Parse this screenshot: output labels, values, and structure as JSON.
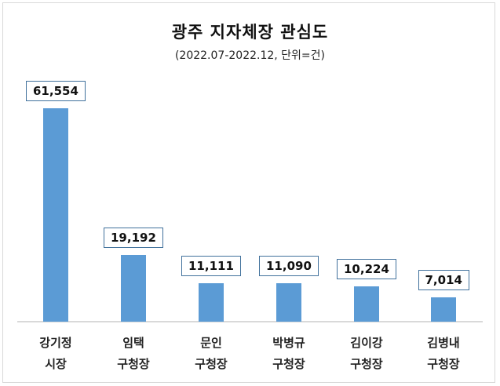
{
  "chart_data": {
    "type": "bar",
    "title": "광주 지자체장 관심도",
    "subtitle": "(2022.07-2022.12, 단위=건)",
    "categories": [
      "강기정 시장",
      "임택 구청장",
      "문인 구청장",
      "박병규 구청장",
      "김이강 구청장",
      "김병내 구청장"
    ],
    "category_lines": [
      [
        "강기정",
        "시장"
      ],
      [
        "임택",
        "구청장"
      ],
      [
        "문인",
        "구청장"
      ],
      [
        "박병규",
        "구청장"
      ],
      [
        "김이강",
        "구청장"
      ],
      [
        "김병내",
        "구청장"
      ]
    ],
    "values": [
      61554,
      19192,
      11111,
      11090,
      10224,
      7014
    ],
    "data_labels": [
      "61,554",
      "19,192",
      "11,111",
      "11,090",
      "10,224",
      "7,014"
    ],
    "xlabel": "",
    "ylabel": "",
    "grid": false,
    "legend": "none",
    "bar_color": "#5b9bd5",
    "label_border_color": "#41719c"
  }
}
